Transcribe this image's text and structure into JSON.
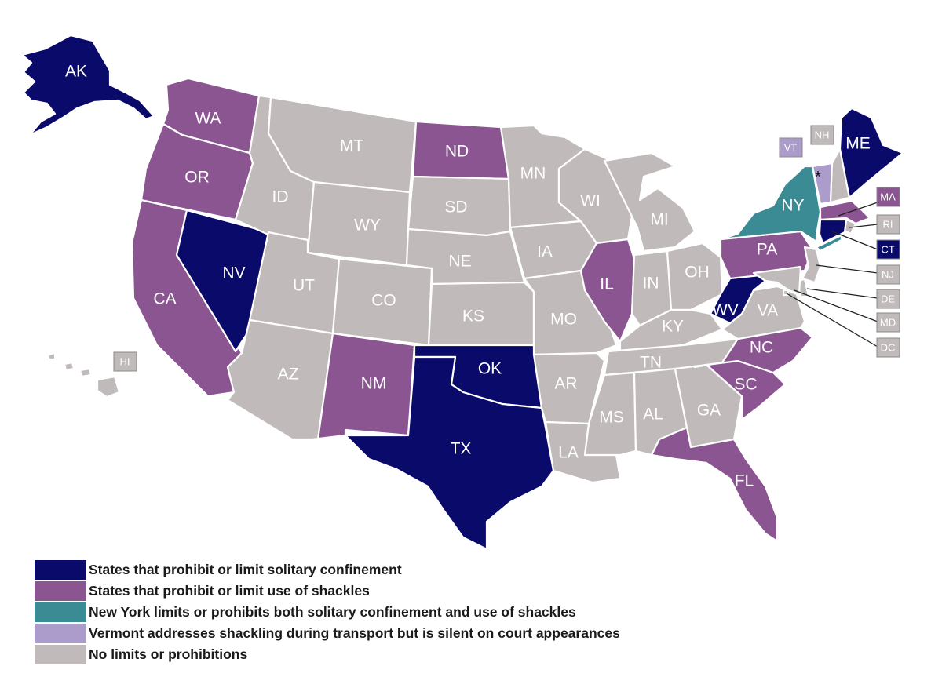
{
  "colors": {
    "solitary": "#0a0a6b",
    "shackles": "#8a5590",
    "both": "#3a8b93",
    "vermont": "#ab9ccb",
    "none": "#c1baba"
  },
  "legend": [
    {
      "key": "solitary",
      "label": "States that prohibit or limit solitary confinement"
    },
    {
      "key": "shackles",
      "label": "States that prohibit or limit use of shackles"
    },
    {
      "key": "both",
      "label": "New York limits or prohibits both solitary confinement and use of shackles"
    },
    {
      "key": "vermont",
      "label": "Vermont addresses shackling during transport but is silent on court appearances"
    },
    {
      "key": "none",
      "label": "No limits or prohibitions"
    }
  ],
  "asterisk": "*",
  "states": {
    "AK": "solitary",
    "WA": "shackles",
    "OR": "shackles",
    "CA": "shackles",
    "NV": "solitary",
    "ID": "none",
    "MT": "none",
    "WY": "none",
    "UT": "none",
    "AZ": "none",
    "CO": "none",
    "NM": "shackles",
    "ND": "shackles",
    "SD": "none",
    "NE": "none",
    "KS": "none",
    "OK": "solitary",
    "TX": "solitary",
    "MN": "none",
    "IA": "none",
    "MO": "none",
    "AR": "none",
    "LA": "none",
    "WI": "none",
    "IL": "shackles",
    "MI": "none",
    "IN": "none",
    "OH": "none",
    "KY": "none",
    "TN": "none",
    "MS": "none",
    "AL": "none",
    "GA": "none",
    "FL": "shackles",
    "SC": "shackles",
    "NC": "shackles",
    "VA": "none",
    "WV": "solitary",
    "PA": "shackles",
    "NY": "both",
    "VT": "vermont",
    "NH": "none",
    "ME": "solitary",
    "MA": "shackles",
    "RI": "none",
    "CT": "solitary",
    "NJ": "none",
    "DE": "none",
    "MD": "none",
    "DC": "none",
    "HI": "none"
  },
  "labels": [
    "AK",
    "WA",
    "OR",
    "CA",
    "NV",
    "ID",
    "MT",
    "WY",
    "UT",
    "AZ",
    "CO",
    "NM",
    "ND",
    "SD",
    "NE",
    "KS",
    "OK",
    "TX",
    "MN",
    "IA",
    "MO",
    "AR",
    "LA",
    "WI",
    "IL",
    "MI",
    "IN",
    "OH",
    "KY",
    "TN",
    "MS",
    "AL",
    "GA",
    "FL",
    "SC",
    "NC",
    "VA",
    "WV",
    "PA",
    "NY",
    "ME",
    "VT",
    "NH",
    "MA",
    "RI",
    "CT",
    "NJ",
    "DE",
    "MD",
    "DC",
    "HI"
  ]
}
